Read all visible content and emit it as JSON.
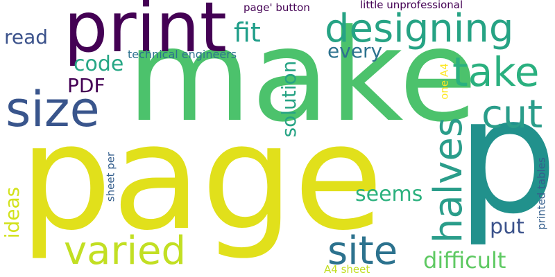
{
  "words": {
    "make": "make",
    "page": "page",
    "print": "print",
    "p": "p",
    "designing": "designing",
    "size": "size",
    "take": "take",
    "cut": "cut",
    "halves": "halves",
    "varied": "varied",
    "site": "site",
    "read": "read",
    "fit": "fit",
    "every": "every",
    "code": "code",
    "pdf": "PDF",
    "solution": "solution",
    "seems": "seems",
    "put": "put",
    "difficult": "difficult",
    "ideas": "ideas",
    "technical_engineers": "technical engineers",
    "page_button": "page' button",
    "little_unprofessional": "little unprofessional",
    "one_a4": "one A4",
    "sheet_per": "sheet per",
    "printed_tables": "printed tables",
    "a4_sheet": "A4 sheet"
  },
  "colors": {
    "dark_purple": "#440154",
    "indigo": "#3b528b",
    "slate_blue": "#355f8d",
    "teal_blue": "#2c728e",
    "teal": "#21918c",
    "sea_green": "#28ae80",
    "green": "#43bf71",
    "light_green": "#5ec962",
    "lime": "#a5db36",
    "yellow_green": "#c2df23",
    "yellow": "#e3e418",
    "gold": "#fde725"
  }
}
